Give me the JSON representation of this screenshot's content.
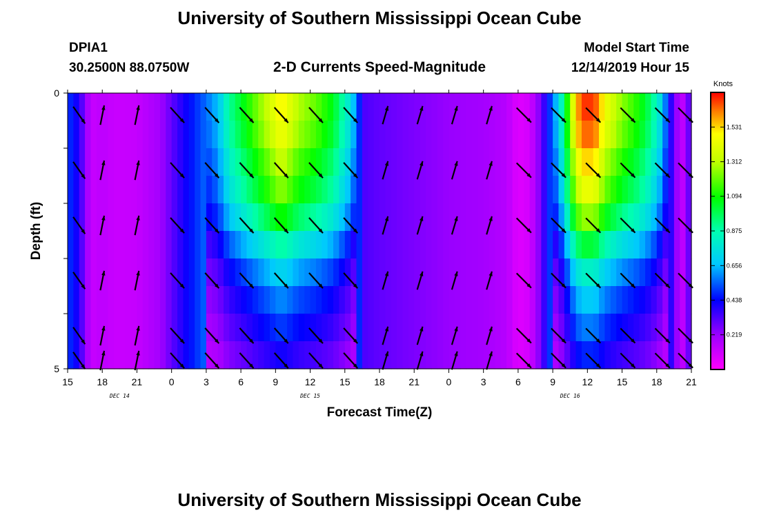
{
  "chart_data": {
    "type": "heatmap",
    "title": "University of Southern Mississippi Ocean Cube",
    "footer_title": "University of Southern Mississippi Ocean Cube",
    "station": "DPIA1",
    "location": "30.2500N 88.0750W",
    "subtitle": "2-D Currents Speed-Magnitude",
    "model_start_label": "Model Start Time",
    "model_start_value": "12/14/2019 Hour 15",
    "xlabel": "Forecast Time(Z)",
    "ylabel": "Depth (ft)",
    "x_hours": [
      0,
      54
    ],
    "x_tick_labels": [
      "15",
      "18",
      "21",
      "0",
      "3",
      "6",
      "9",
      "12",
      "15",
      "18",
      "21",
      "0",
      "3",
      "6",
      "9",
      "12",
      "15",
      "18",
      "21"
    ],
    "x_ticks_hours": [
      0,
      3,
      6,
      9,
      12,
      15,
      18,
      21,
      24,
      27,
      30,
      33,
      36,
      39,
      42,
      45,
      48,
      51,
      54
    ],
    "day_labels": [
      {
        "label": "DEC 14",
        "hour": 4.5
      },
      {
        "label": "DEC 15",
        "hour": 21
      },
      {
        "label": "DEC 16",
        "hour": 43.5
      }
    ],
    "y_tick_labels": [
      "0",
      "5"
    ],
    "ylim": [
      0,
      5
    ],
    "colorbar": {
      "label": "Knots",
      "ticks": [
        "1.531",
        "1.312",
        "1.094",
        "0.875",
        "0.656",
        "0.438",
        "0.219"
      ],
      "tick_values": [
        1.531,
        1.312,
        1.094,
        0.875,
        0.656,
        0.438,
        0.219
      ],
      "range": [
        0,
        1.75
      ]
    },
    "speed_profile": [
      [
        0.0,
        0.5
      ],
      [
        0.5,
        0.45
      ],
      [
        1.0,
        0.38
      ],
      [
        1.5,
        0.25
      ],
      [
        2.0,
        0.12
      ],
      [
        3.0,
        0.15
      ],
      [
        4.0,
        0.12
      ],
      [
        6.0,
        0.13
      ],
      [
        8.0,
        0.2
      ],
      [
        9.0,
        0.3
      ],
      [
        10.0,
        0.4
      ],
      [
        11.0,
        0.48
      ],
      [
        12.0,
        0.56
      ],
      [
        13.0,
        0.66
      ],
      [
        14.0,
        0.9
      ],
      [
        15.5,
        1.1
      ],
      [
        17.0,
        1.3
      ],
      [
        18.5,
        1.5
      ],
      [
        20.0,
        1.3
      ],
      [
        21.5,
        1.2
      ],
      [
        23.0,
        1.05
      ],
      [
        24.5,
        0.75
      ],
      [
        25.2,
        0.5
      ],
      [
        25.6,
        0.33
      ],
      [
        27.0,
        0.3
      ],
      [
        30.0,
        0.26
      ],
      [
        33.0,
        0.22
      ],
      [
        36.0,
        0.2
      ],
      [
        38.0,
        0.16
      ],
      [
        39.0,
        0.07
      ],
      [
        40.0,
        0.1
      ],
      [
        41.0,
        0.28
      ],
      [
        41.5,
        0.44
      ],
      [
        42.0,
        0.55
      ],
      [
        42.8,
        0.85
      ],
      [
        43.5,
        1.25
      ],
      [
        44.0,
        1.55
      ],
      [
        44.6,
        1.7
      ],
      [
        45.6,
        1.7
      ],
      [
        46.5,
        1.45
      ],
      [
        48.0,
        1.25
      ],
      [
        49.5,
        1.1
      ],
      [
        50.5,
        0.95
      ],
      [
        51.5,
        0.7
      ],
      [
        52.0,
        0.45
      ],
      [
        52.8,
        0.2
      ],
      [
        53.5,
        0.12
      ],
      [
        54.0,
        0.45
      ]
    ],
    "depth_factor": [
      1.0,
      0.97,
      0.9,
      0.84,
      0.74,
      0.6,
      0.48,
      0.4,
      0.34,
      0.28
    ],
    "arrow_rows_depth_ft": [
      0.25,
      1.25,
      2.25,
      3.25,
      4.25,
      5.0
    ],
    "arrow_cols_hours": [
      1,
      3,
      6,
      9.5,
      12.5,
      15.5,
      18.5,
      21.5,
      24.5,
      27.5,
      30.5,
      33.5,
      36.5,
      39.5,
      42.5,
      45.5,
      48.5,
      51.5,
      53.5
    ],
    "arrow_colors": [
      "#000000"
    ]
  }
}
